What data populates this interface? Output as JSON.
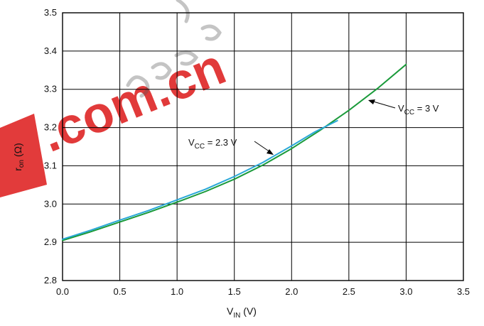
{
  "chart_data": {
    "type": "line",
    "title": "",
    "xlabel": {
      "main": "V",
      "sub": "IN",
      "unit": " (V)"
    },
    "ylabel": {
      "main": "r",
      "sub": "on",
      "unit": " (Ω)"
    },
    "xlim": [
      0.0,
      3.5
    ],
    "ylim": [
      2.8,
      3.5
    ],
    "x_ticks": [
      "0.0",
      "0.5",
      "1.0",
      "1.5",
      "2.0",
      "2.5",
      "3.0",
      "3.5"
    ],
    "y_ticks": [
      "2.8",
      "2.9",
      "3.0",
      "3.1",
      "3.2",
      "3.3",
      "3.4",
      "3.5"
    ],
    "grid": true,
    "colors": {
      "vcc_3v": "#1a9a3a",
      "vcc_2_3v": "#29a8d8",
      "grid": "#000000"
    },
    "series": [
      {
        "id": "vcc_3v",
        "name": {
          "main": "V",
          "sub": "CC",
          "rest": " = 3 V"
        },
        "x": [
          0.0,
          0.25,
          0.5,
          0.75,
          1.0,
          1.25,
          1.5,
          1.75,
          2.0,
          2.25,
          2.5,
          2.75,
          3.0
        ],
        "y": [
          2.905,
          2.928,
          2.953,
          2.978,
          3.005,
          3.033,
          3.065,
          3.102,
          3.145,
          3.193,
          3.245,
          3.302,
          3.365
        ]
      },
      {
        "id": "vcc_2_3v",
        "name": {
          "main": "V",
          "sub": "CC",
          "rest": " = 2.3 V"
        },
        "x": [
          0.0,
          0.25,
          0.5,
          0.75,
          1.0,
          1.25,
          1.5,
          1.75,
          2.0,
          2.2,
          2.4
        ],
        "y": [
          2.908,
          2.932,
          2.958,
          2.983,
          3.011,
          3.039,
          3.072,
          3.109,
          3.152,
          3.188,
          3.218
        ]
      }
    ]
  },
  "watermark": {
    "text": ".com.cn",
    "color": "#e03030"
  }
}
